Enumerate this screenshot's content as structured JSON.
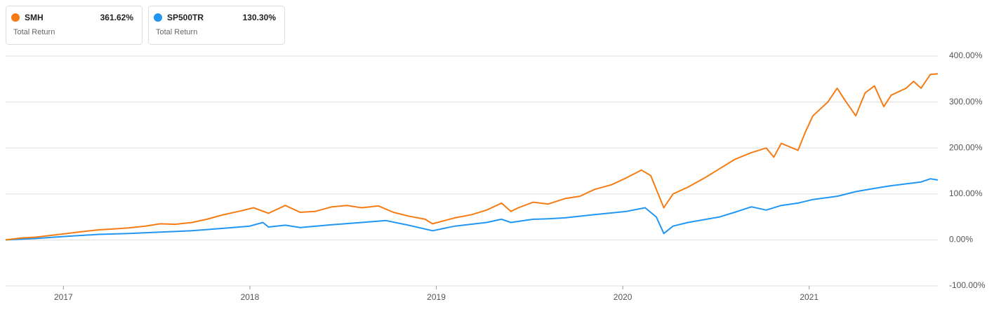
{
  "chart_data": {
    "type": "line",
    "xlim": [
      2016.69,
      2021.69
    ],
    "xticks": [
      2017,
      2018,
      2019,
      2020,
      2021
    ],
    "ylim": [
      -100,
      400
    ],
    "yticks": [
      {
        "value": 400,
        "label": "400.00%"
      },
      {
        "value": 300,
        "label": "300.00%"
      },
      {
        "value": 200,
        "label": "200.00%"
      },
      {
        "value": 100,
        "label": "100.00%"
      },
      {
        "value": 0,
        "label": "0.00%"
      },
      {
        "value": -100,
        "label": "-100.00%"
      }
    ],
    "grid": true,
    "series": [
      {
        "name": "SMH",
        "color": "#f57c14",
        "subtitle": "Total Return",
        "value_label": "361.62%",
        "x": [
          2016.69,
          2016.77,
          2016.85,
          2016.94,
          2017.02,
          2017.1,
          2017.19,
          2017.27,
          2017.35,
          2017.44,
          2017.52,
          2017.6,
          2017.69,
          2017.77,
          2017.85,
          2017.94,
          2018.02,
          2018.1,
          2018.19,
          2018.27,
          2018.35,
          2018.44,
          2018.52,
          2018.6,
          2018.69,
          2018.77,
          2018.85,
          2018.94,
          2018.98,
          2019.1,
          2019.19,
          2019.27,
          2019.35,
          2019.4,
          2019.44,
          2019.52,
          2019.6,
          2019.69,
          2019.77,
          2019.85,
          2019.94,
          2020.02,
          2020.1,
          2020.15,
          2020.22,
          2020.27,
          2020.35,
          2020.44,
          2020.52,
          2020.6,
          2020.69,
          2020.77,
          2020.81,
          2020.85,
          2020.94,
          2020.98,
          2021.02,
          2021.1,
          2021.15,
          2021.19,
          2021.25,
          2021.3,
          2021.35,
          2021.4,
          2021.44,
          2021.52,
          2021.56,
          2021.6,
          2021.65,
          2021.69
        ],
        "values": [
          0,
          4,
          6,
          10,
          14,
          18,
          22,
          24,
          26,
          30,
          35,
          34,
          38,
          45,
          54,
          62,
          70,
          58,
          75,
          60,
          62,
          72,
          75,
          70,
          74,
          60,
          52,
          45,
          35,
          48,
          55,
          65,
          80,
          62,
          70,
          82,
          78,
          90,
          95,
          110,
          120,
          135,
          152,
          140,
          70,
          100,
          115,
          135,
          155,
          175,
          190,
          200,
          180,
          210,
          195,
          235,
          270,
          300,
          330,
          305,
          270,
          320,
          335,
          290,
          315,
          330,
          345,
          330,
          360,
          361.62
        ]
      },
      {
        "name": "SP500TR",
        "color": "#2196f3",
        "subtitle": "Total Return",
        "value_label": "130.30%",
        "x": [
          2016.69,
          2016.85,
          2017.02,
          2017.19,
          2017.35,
          2017.52,
          2017.69,
          2017.85,
          2018.0,
          2018.07,
          2018.1,
          2018.19,
          2018.27,
          2018.44,
          2018.6,
          2018.73,
          2018.85,
          2018.98,
          2019.1,
          2019.27,
          2019.35,
          2019.4,
          2019.52,
          2019.6,
          2019.69,
          2019.85,
          2020.02,
          2020.12,
          2020.18,
          2020.22,
          2020.27,
          2020.35,
          2020.52,
          2020.6,
          2020.69,
          2020.77,
          2020.85,
          2020.94,
          2021.02,
          2021.15,
          2021.25,
          2021.35,
          2021.44,
          2021.52,
          2021.6,
          2021.65,
          2021.69
        ],
        "values": [
          0,
          3,
          8,
          12,
          14,
          17,
          20,
          25,
          30,
          38,
          28,
          32,
          27,
          33,
          38,
          42,
          32,
          20,
          30,
          38,
          45,
          38,
          45,
          46,
          48,
          55,
          62,
          70,
          50,
          14,
          30,
          38,
          50,
          60,
          72,
          65,
          75,
          80,
          88,
          95,
          105,
          112,
          118,
          122,
          126,
          133,
          130.3
        ]
      }
    ]
  }
}
